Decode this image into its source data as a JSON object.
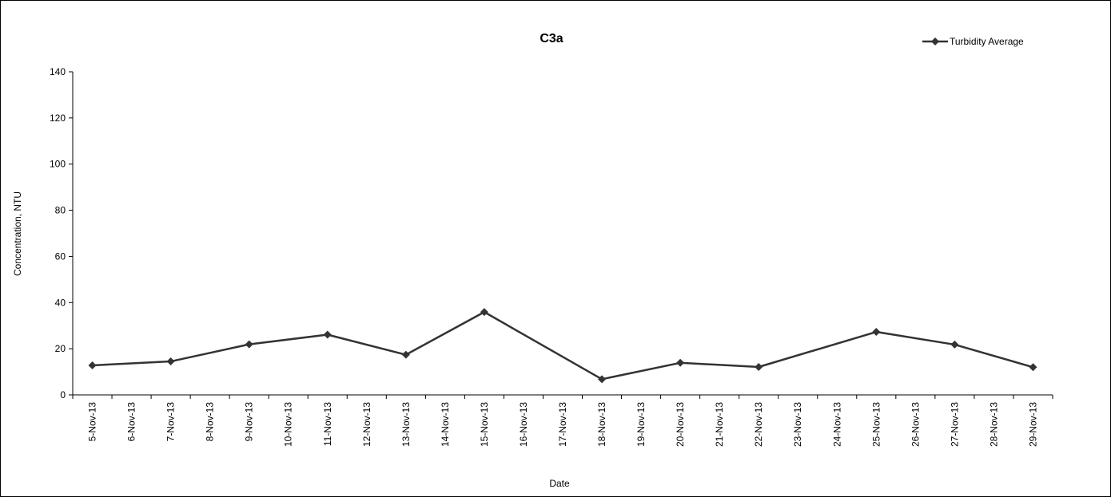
{
  "chart_data": {
    "type": "line",
    "title": "C3a",
    "xlabel": "Date",
    "ylabel": "Concentration, NTU",
    "ylim": [
      0,
      140
    ],
    "yticks": [
      0,
      20,
      40,
      60,
      80,
      100,
      120,
      140
    ],
    "grid": false,
    "legend_position": "top-right",
    "categories": [
      "5-Nov-13",
      "6-Nov-13",
      "7-Nov-13",
      "8-Nov-13",
      "9-Nov-13",
      "10-Nov-13",
      "11-Nov-13",
      "12-Nov-13",
      "13-Nov-13",
      "14-Nov-13",
      "15-Nov-13",
      "16-Nov-13",
      "17-Nov-13",
      "18-Nov-13",
      "19-Nov-13",
      "20-Nov-13",
      "21-Nov-13",
      "22-Nov-13",
      "23-Nov-13",
      "24-Nov-13",
      "25-Nov-13",
      "26-Nov-13",
      "27-Nov-13",
      "28-Nov-13",
      "29-Nov-13"
    ],
    "series": [
      {
        "name": "Turbidity Average",
        "color": "#333333",
        "marker": "diamond",
        "points": [
          {
            "x": "5-Nov-13",
            "y": 12.8
          },
          {
            "x": "7-Nov-13",
            "y": 14.5
          },
          {
            "x": "9-Nov-13",
            "y": 21.9
          },
          {
            "x": "11-Nov-13",
            "y": 26.1
          },
          {
            "x": "13-Nov-13",
            "y": 17.4
          },
          {
            "x": "15-Nov-13",
            "y": 35.9
          },
          {
            "x": "18-Nov-13",
            "y": 6.8
          },
          {
            "x": "20-Nov-13",
            "y": 13.9
          },
          {
            "x": "22-Nov-13",
            "y": 12.1
          },
          {
            "x": "25-Nov-13",
            "y": 27.3
          },
          {
            "x": "27-Nov-13",
            "y": 21.8
          },
          {
            "x": "29-Nov-13",
            "y": 12.0
          }
        ]
      }
    ]
  }
}
